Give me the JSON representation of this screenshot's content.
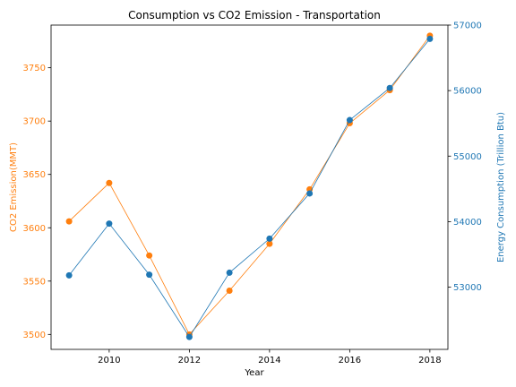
{
  "chart_data": {
    "type": "line",
    "title": "Consumption vs CO2 Emission - Transportation",
    "xlabel": "Year",
    "x": [
      2009,
      2010,
      2011,
      2012,
      2013,
      2014,
      2015,
      2016,
      2017,
      2018
    ],
    "xticks": [
      "2010",
      "2012",
      "2014",
      "2016",
      "2018"
    ],
    "xlim": [
      2008.55,
      2018.45
    ],
    "left_axis": {
      "label": "CO2 Emission(MMT)",
      "color": "#ff7f0e",
      "ticks": [
        "3500",
        "3550",
        "3600",
        "3650",
        "3700",
        "3750"
      ],
      "ylim": [
        3486,
        3790
      ]
    },
    "right_axis": {
      "label": "Energy Consumption (Trillion Btu)",
      "color": "#1f77b4",
      "ticks": [
        "53000",
        "54000",
        "55000",
        "56000",
        "57000"
      ],
      "ylim": [
        52050,
        57000
      ]
    },
    "series": [
      {
        "axis": "left",
        "color": "#ff7f0e",
        "values": [
          3606,
          3642,
          3574,
          3500,
          3541,
          3585,
          3636,
          3698,
          3729,
          3780
        ]
      },
      {
        "axis": "right",
        "color": "#1f77b4",
        "values": [
          53180,
          53970,
          53190,
          52240,
          53220,
          53740,
          54430,
          55550,
          56040,
          56790
        ]
      }
    ],
    "grid": false,
    "legend": "none"
  }
}
